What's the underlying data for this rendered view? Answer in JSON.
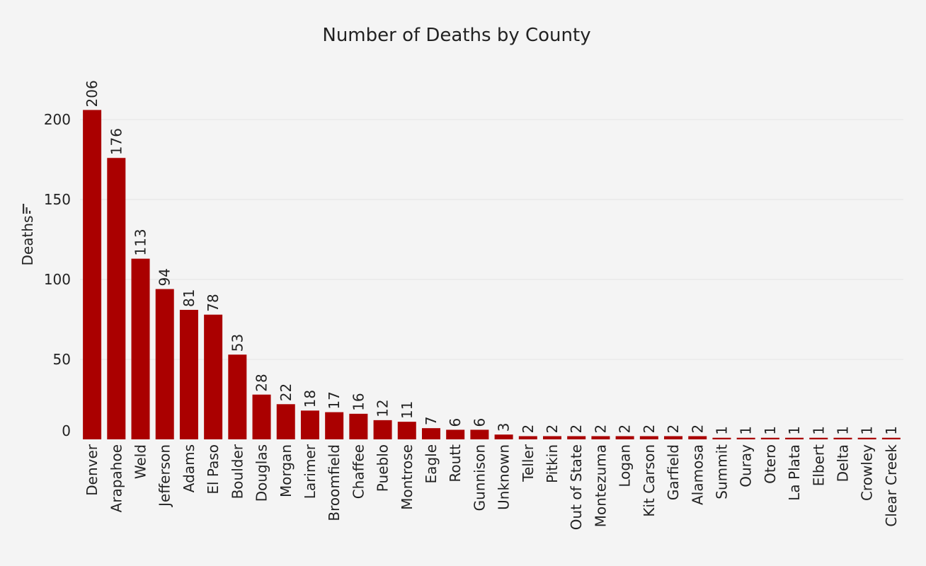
{
  "chart_data": {
    "type": "bar",
    "title": "Number of Deaths by County",
    "xlabel": "",
    "ylabel": "Deaths",
    "ylim": [
      0,
      210
    ],
    "yticks": [
      0,
      50,
      100,
      150,
      200
    ],
    "grid": true,
    "legend": "none",
    "bar_color": "#aa0000",
    "sort_icon": "sort-descending-icon",
    "categories": [
      "Denver",
      "Arapahoe",
      "Weld",
      "Jefferson",
      "Adams",
      "El Paso",
      "Boulder",
      "Douglas",
      "Morgan",
      "Larimer",
      "Broomfield",
      "Chaffee",
      "Pueblo",
      "Montrose",
      "Eagle",
      "Routt",
      "Gunnison",
      "Unknown",
      "Teller",
      "Pitkin",
      "Out of State",
      "Montezuma",
      "Logan",
      "Kit Carson",
      "Garfield",
      "Alamosa",
      "Summit",
      "Ouray",
      "Otero",
      "La Plata",
      "Elbert",
      "Delta",
      "Crowley",
      "Clear Creek"
    ],
    "values": [
      206,
      176,
      113,
      94,
      81,
      78,
      53,
      28,
      22,
      18,
      17,
      16,
      12,
      11,
      7,
      6,
      6,
      3,
      2,
      2,
      2,
      2,
      2,
      2,
      2,
      2,
      1,
      1,
      1,
      1,
      1,
      1,
      1,
      1
    ]
  }
}
